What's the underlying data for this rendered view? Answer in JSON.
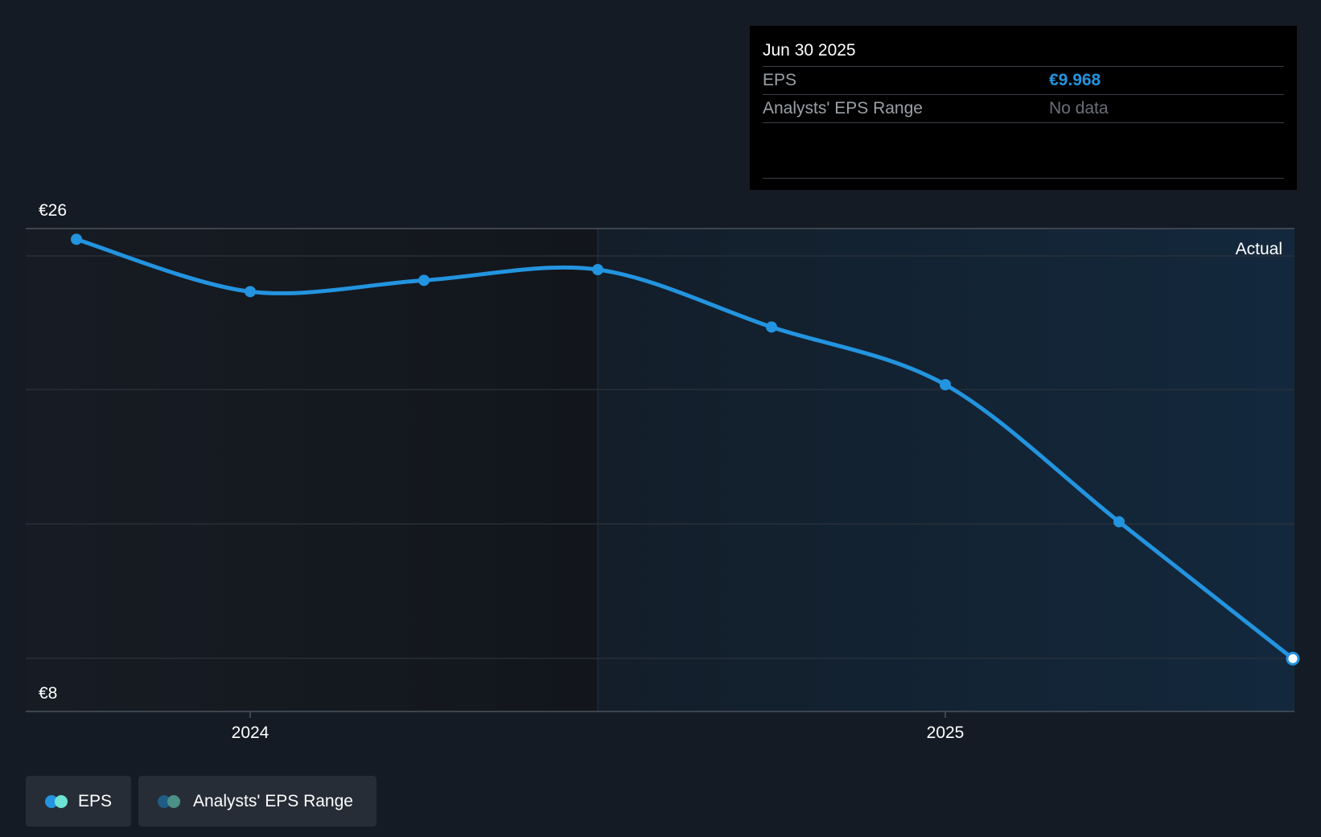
{
  "chart_data": {
    "type": "line",
    "title": "",
    "y_axis": {
      "min": 8,
      "max": 26,
      "top_label": "€26",
      "bottom_label": "€8"
    },
    "x_axis": {
      "ticks": [
        {
          "label": "2024",
          "t": 2024.0
        },
        {
          "label": "2025",
          "t": 2025.0
        }
      ]
    },
    "series": [
      {
        "name": "EPS",
        "color": "#2394df",
        "points": [
          {
            "date": "Sep 30 2023",
            "t": 2023.75,
            "value": 25.6
          },
          {
            "date": "Dec 31 2023",
            "t": 2024.0,
            "value": 23.65
          },
          {
            "date": "Mar 31 2024",
            "t": 2024.25,
            "value": 24.07
          },
          {
            "date": "Jun 30 2024",
            "t": 2024.5,
            "value": 24.47
          },
          {
            "date": "Sep 30 2024",
            "t": 2024.75,
            "value": 22.33
          },
          {
            "date": "Dec 31 2024",
            "t": 2025.0,
            "value": 20.18
          },
          {
            "date": "Mar 31 2025",
            "t": 2025.25,
            "value": 15.07
          },
          {
            "date": "Jun 30 2025",
            "t": 2025.5,
            "value": 9.968
          }
        ]
      }
    ],
    "actual_region": {
      "start": 2024.5,
      "end": 2025.5,
      "label": "Actual"
    },
    "colors": {
      "line": "#2394df",
      "past_bg": "#13181f",
      "actual_bg": "#132536",
      "grid": "#2c333c"
    }
  },
  "tooltip": {
    "date": "Jun 30 2025",
    "eps_label": "EPS",
    "eps_value": "€9.968",
    "range_label": "Analysts' EPS Range",
    "range_value": "No data"
  },
  "legend": {
    "eps_label": "EPS",
    "range_label": "Analysts' EPS Range",
    "eps_colors": [
      "#2394df",
      "#6fe3d3"
    ],
    "range_colors": [
      "#1f5c86",
      "#4b8f87"
    ]
  }
}
